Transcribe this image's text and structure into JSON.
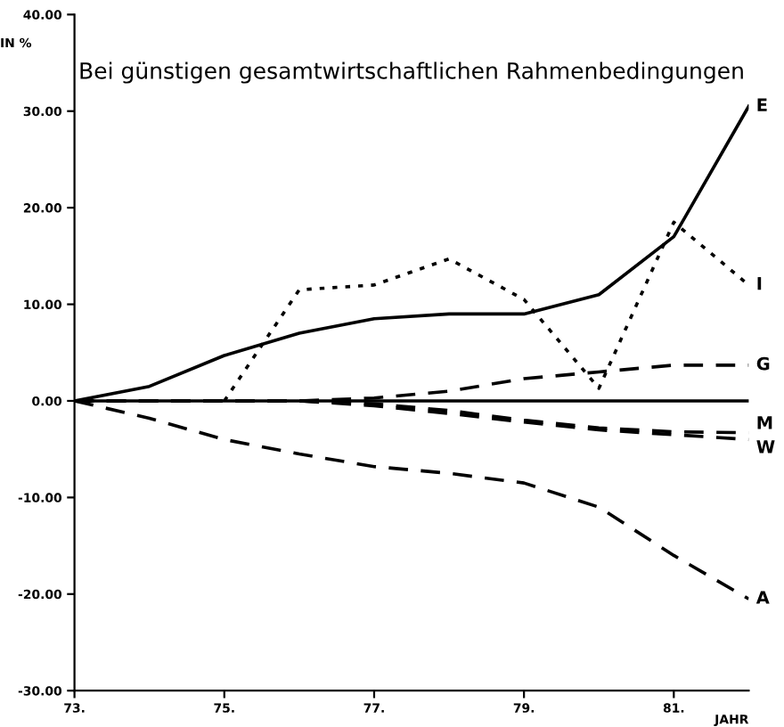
{
  "chart_data": {
    "type": "line",
    "title": "Bei günstigen gesamtwirtschaftlichen Rahmenbedingungen",
    "ylabel": "IN %",
    "xlabel": "JAHR",
    "x": [
      73,
      74,
      75,
      76,
      77,
      78,
      79,
      80,
      81,
      82
    ],
    "series": [
      {
        "name": "E",
        "color": "#000000",
        "line_style": "solid",
        "values": [
          0,
          1.5,
          4.7,
          7,
          8.5,
          9,
          9,
          11,
          17,
          30.5
        ]
      },
      {
        "name": "I",
        "color": "#000000",
        "line_style": "dotted",
        "values": [
          null,
          null,
          0,
          11.5,
          12,
          14.7,
          10.5,
          1.3,
          18.5,
          12
        ]
      },
      {
        "name": "G",
        "color": "#000000",
        "line_style": "dashed",
        "values": [
          0,
          0,
          0,
          0,
          0.3,
          1,
          2.3,
          3,
          3.7,
          3.7
        ]
      },
      {
        "name": "M",
        "color": "#000000",
        "line_style": "dashed",
        "values": [
          0,
          0,
          0,
          0,
          -0.3,
          -1,
          -2,
          -2.8,
          -3.2,
          -3.3
        ]
      },
      {
        "name": "W",
        "color": "#000000",
        "line_style": "dashed",
        "values": [
          0,
          0,
          0,
          0,
          -0.5,
          -1.3,
          -2.2,
          -3,
          -3.5,
          -4
        ]
      },
      {
        "name": "A",
        "color": "#000000",
        "line_style": "dashed",
        "values": [
          0,
          -1.8,
          -4,
          -5.5,
          -6.8,
          -7.5,
          -8.5,
          -11,
          -16,
          -20.5
        ]
      }
    ],
    "ref_lines": [
      {
        "axis": "y",
        "value": 0,
        "color": "#000000",
        "line_style": "solid"
      }
    ],
    "xlim": [
      73,
      82
    ],
    "ylim": [
      -30,
      40
    ],
    "xticks": [
      {
        "value": 73,
        "label": "73."
      },
      {
        "value": 75,
        "label": "75."
      },
      {
        "value": 77,
        "label": "77."
      },
      {
        "value": 79,
        "label": "79."
      },
      {
        "value": 81,
        "label": "81."
      }
    ],
    "yticks": [
      {
        "value": -30,
        "label": "-30.00"
      },
      {
        "value": -20,
        "label": "-20.00"
      },
      {
        "value": -10,
        "label": "-10.00"
      },
      {
        "value": 0,
        "label": "0.00"
      },
      {
        "value": 10,
        "label": "10.00"
      },
      {
        "value": 20,
        "label": "20.00"
      },
      {
        "value": 30,
        "label": "30.00"
      },
      {
        "value": 40,
        "label": "40.00"
      }
    ],
    "grid": false,
    "legend": false,
    "marker": "none"
  }
}
